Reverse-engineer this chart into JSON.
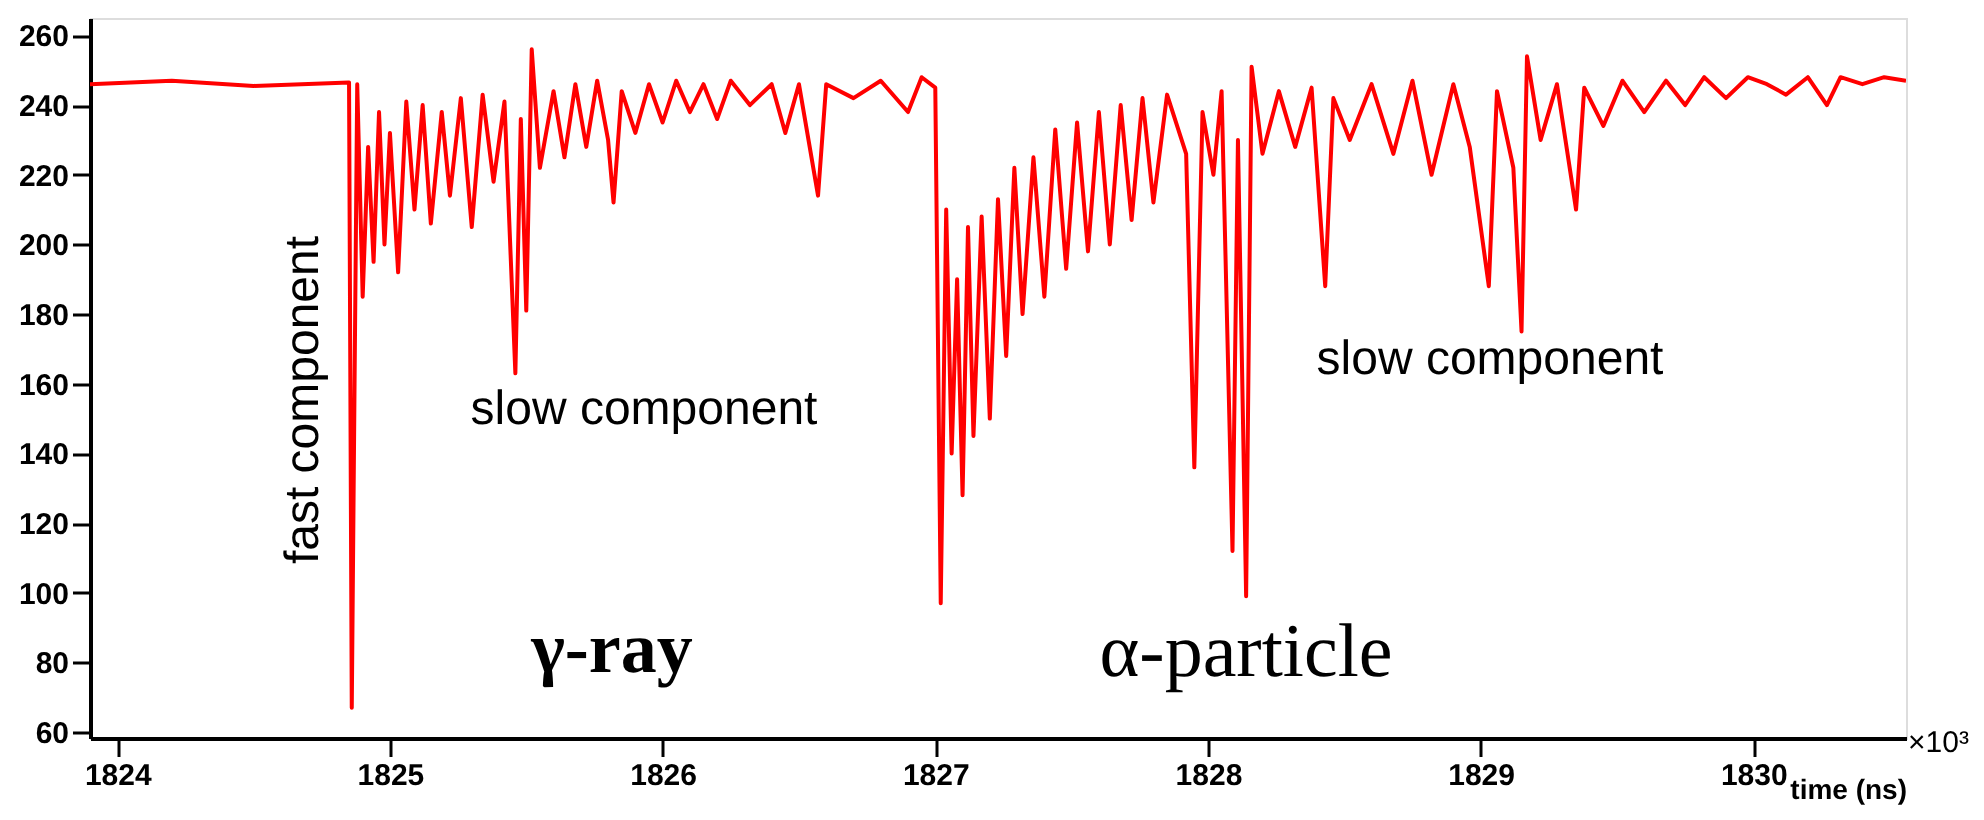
{
  "chart_data": {
    "type": "line",
    "xlabel": "time (ns)",
    "xlim": [
      1823.9,
      1830.56
    ],
    "ylim": [
      58.3,
      265
    ],
    "xticks": [
      1824,
      1825,
      1826,
      1827,
      1828,
      1829,
      1830
    ],
    "yticks": [
      60,
      80,
      100,
      120,
      140,
      160,
      180,
      200,
      220,
      240,
      260
    ],
    "grid": false,
    "marker": "none",
    "line_style": "solid",
    "series": [
      {
        "color": "#ff0000",
        "x": [
          1823.9,
          1824.2,
          1824.5,
          1824.85,
          1824.86,
          1824.87,
          1824.88,
          1824.9,
          1824.92,
          1824.94,
          1824.96,
          1824.98,
          1825.0,
          1825.03,
          1825.06,
          1825.09,
          1825.12,
          1825.15,
          1825.19,
          1825.22,
          1825.26,
          1825.3,
          1825.34,
          1825.38,
          1825.42,
          1825.46,
          1825.48,
          1825.5,
          1825.52,
          1825.55,
          1825.6,
          1825.64,
          1825.68,
          1825.72,
          1825.76,
          1825.8,
          1825.82,
          1825.85,
          1825.9,
          1825.95,
          1826.0,
          1826.05,
          1826.1,
          1826.15,
          1826.2,
          1826.25,
          1826.32,
          1826.4,
          1826.45,
          1826.5,
          1826.57,
          1826.6,
          1826.7,
          1826.8,
          1826.9,
          1826.95,
          1827.0,
          1827.02,
          1827.04,
          1827.06,
          1827.08,
          1827.1,
          1827.12,
          1827.14,
          1827.17,
          1827.2,
          1827.23,
          1827.26,
          1827.29,
          1827.32,
          1827.36,
          1827.4,
          1827.44,
          1827.48,
          1827.52,
          1827.56,
          1827.6,
          1827.64,
          1827.68,
          1827.72,
          1827.76,
          1827.8,
          1827.85,
          1827.92,
          1827.95,
          1827.98,
          1828.02,
          1828.05,
          1828.09,
          1828.11,
          1828.14,
          1828.16,
          1828.2,
          1828.26,
          1828.32,
          1828.38,
          1828.43,
          1828.46,
          1828.52,
          1828.6,
          1828.68,
          1828.75,
          1828.82,
          1828.9,
          1828.96,
          1829.03,
          1829.06,
          1829.12,
          1829.15,
          1829.17,
          1829.22,
          1829.28,
          1829.35,
          1829.38,
          1829.45,
          1829.52,
          1829.6,
          1829.68,
          1829.75,
          1829.82,
          1829.9,
          1829.98,
          1830.05,
          1830.12,
          1830.2,
          1830.27,
          1830.32,
          1830.4,
          1830.48,
          1830.56
        ],
        "values": [
          246,
          247,
          245.5,
          246.5,
          67,
          158,
          246,
          185,
          228,
          195,
          238,
          200,
          232,
          192,
          241,
          210,
          240,
          206,
          238,
          214,
          242,
          205,
          243,
          218,
          241,
          163,
          236,
          181,
          256,
          222,
          244,
          225,
          246,
          228,
          247,
          230,
          212,
          244,
          232,
          246,
          235,
          247,
          238,
          246,
          236,
          247,
          240,
          246,
          232,
          246,
          214,
          246,
          242,
          247,
          238,
          248,
          245,
          97,
          210,
          140,
          190,
          128,
          205,
          145,
          208,
          150,
          213,
          168,
          222,
          180,
          225,
          185,
          233,
          193,
          235,
          198,
          238,
          200,
          240,
          207,
          242,
          212,
          243,
          226,
          136,
          238,
          220,
          244,
          112,
          230,
          99,
          251,
          226,
          244,
          228,
          245,
          188,
          242,
          230,
          246,
          226,
          247,
          220,
          246,
          228,
          188,
          244,
          222,
          175,
          254,
          230,
          246,
          210,
          245,
          234,
          247,
          238,
          247,
          240,
          248,
          242,
          248,
          246,
          243,
          248,
          240,
          248,
          246,
          248,
          247
        ]
      }
    ],
    "annotations": [
      "fast component",
      "slow component",
      "γ-ray",
      "α-particle",
      "slow component",
      "×10³"
    ]
  }
}
